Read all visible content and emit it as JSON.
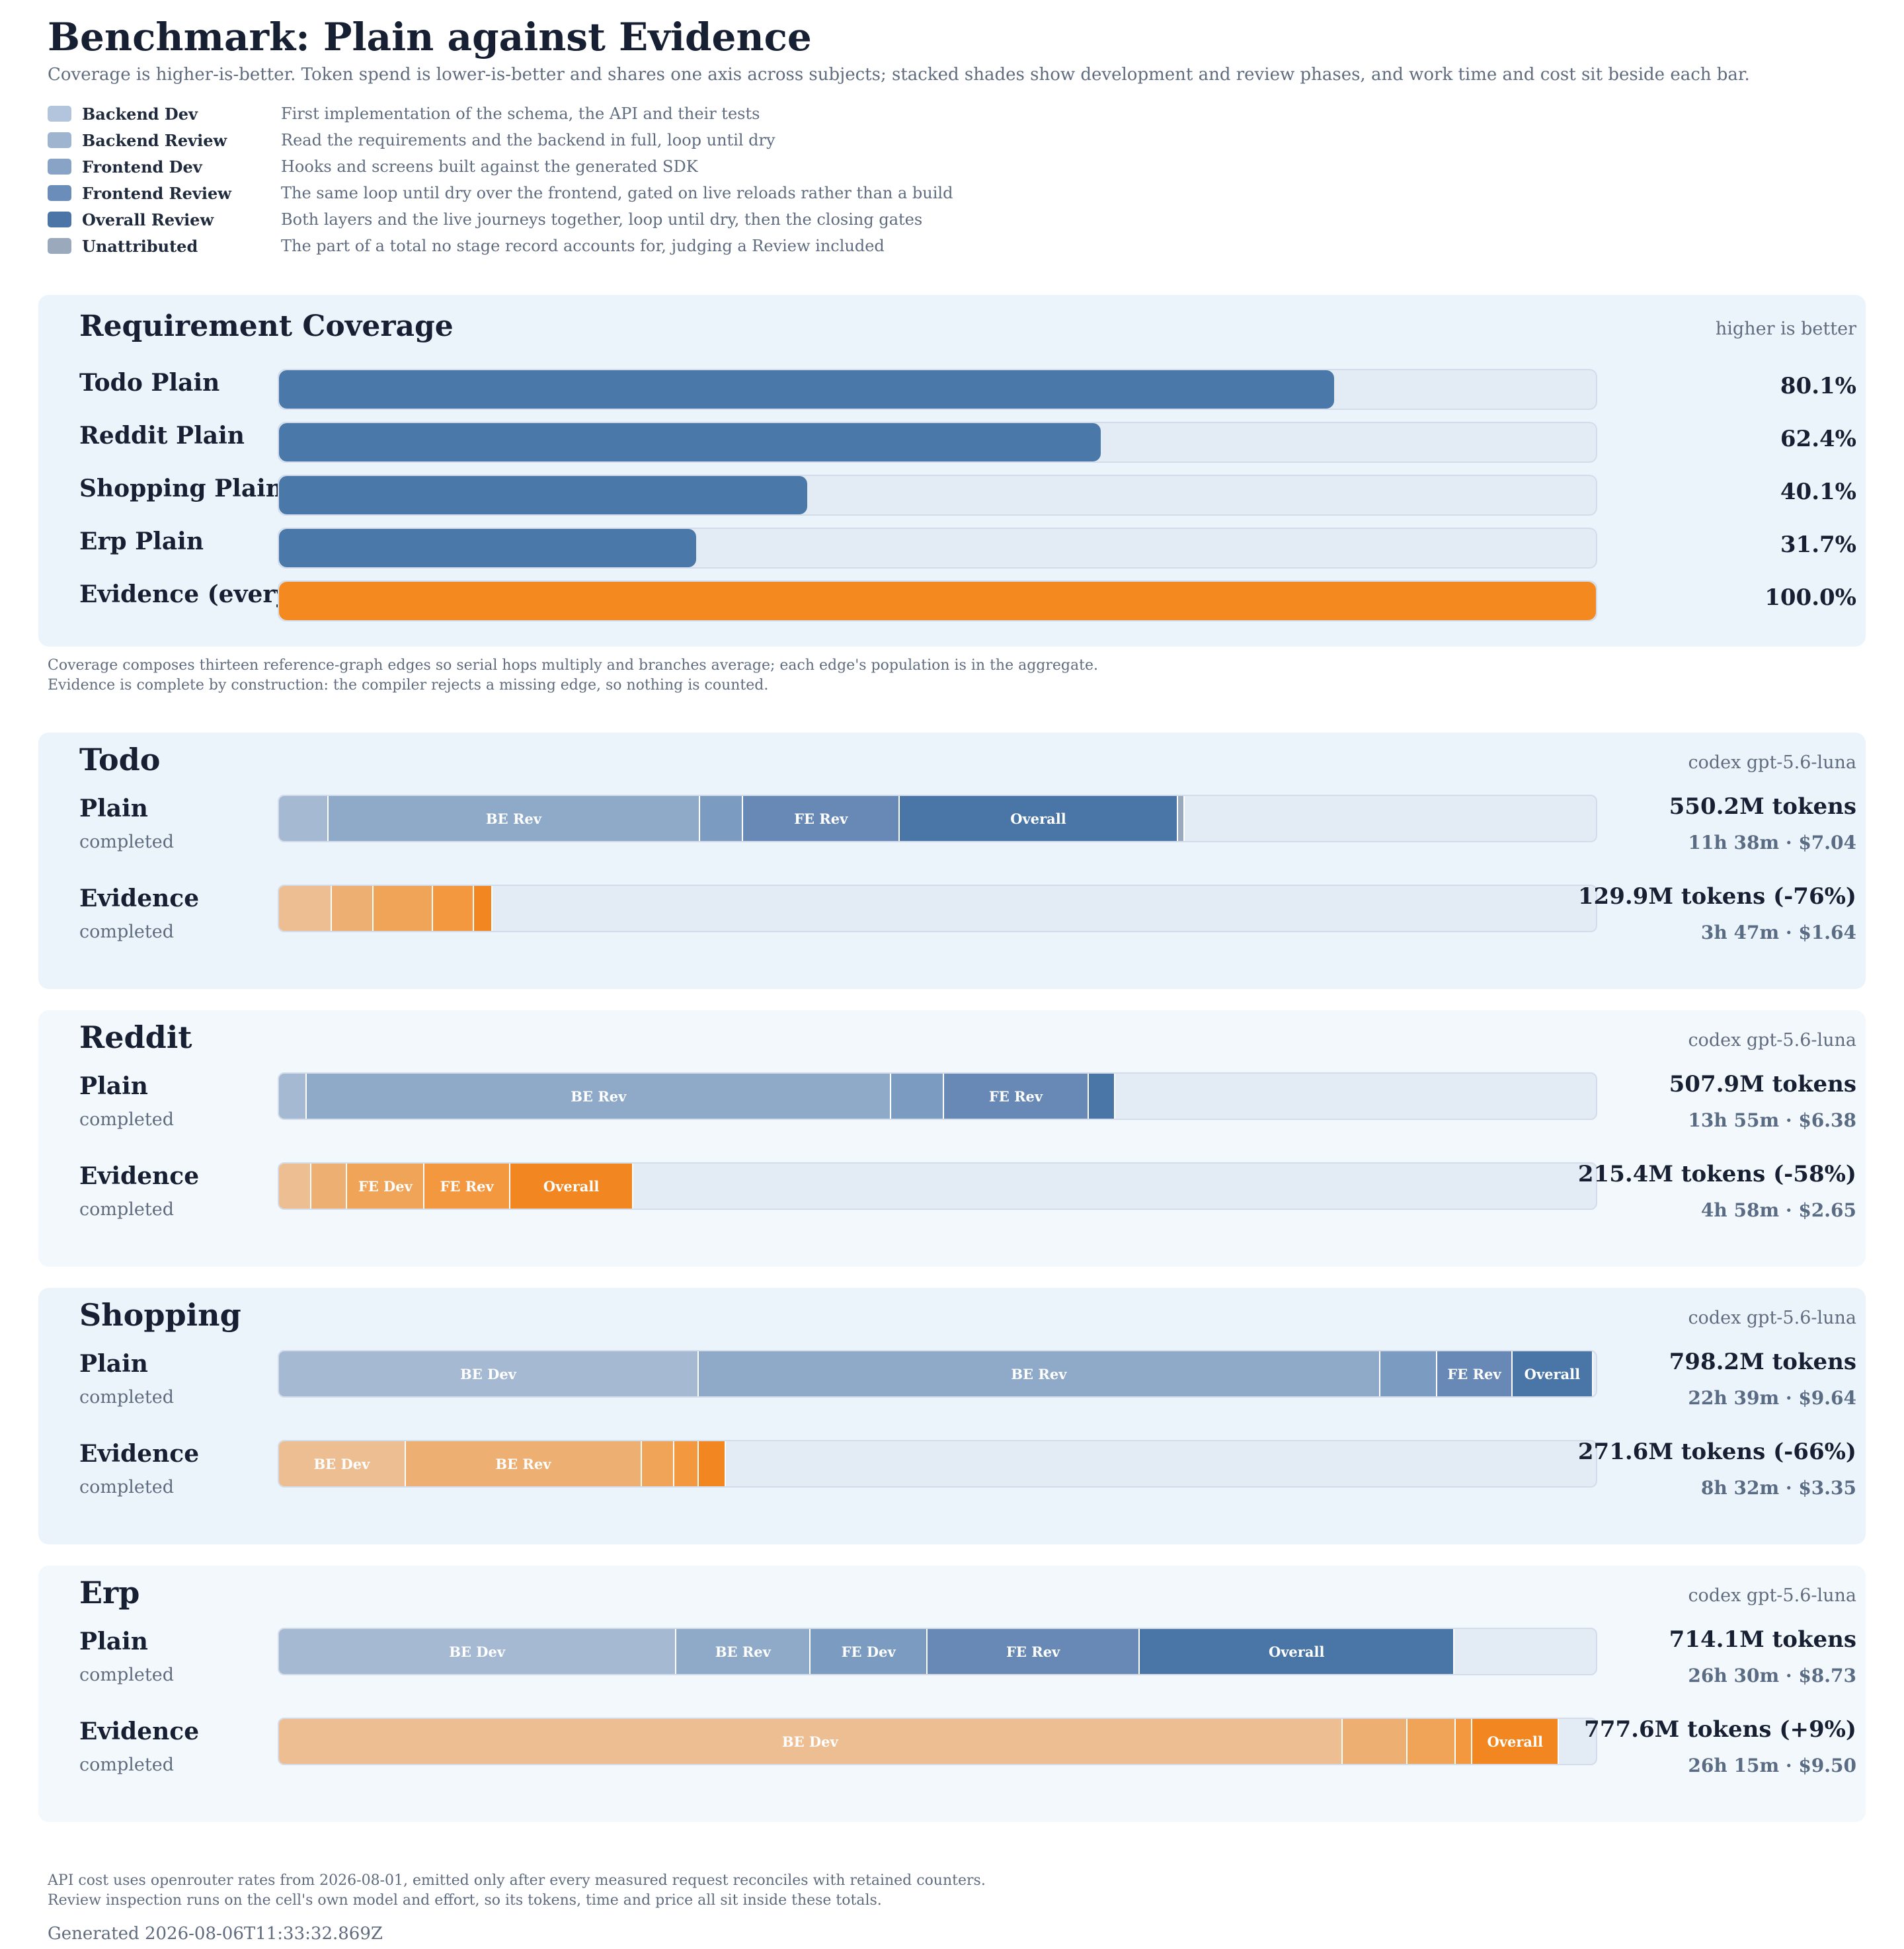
{
  "header": {
    "title": "Benchmark: Plain against Evidence",
    "subtitle": "Coverage is higher-is-better. Token spend is lower-is-better and shares one axis across subjects; stacked shades show development and review phases, and work time and cost sit beside each bar."
  },
  "legend": [
    {
      "name": "Backend Dev",
      "description": "First implementation of the schema, the API and their tests",
      "color": "#b3c5dc"
    },
    {
      "name": "Backend Review",
      "description": "Read the requirements and the backend in full, loop until dry",
      "color": "#9fb4cf"
    },
    {
      "name": "Frontend Dev",
      "description": "Hooks and screens built against the generated SDK",
      "color": "#88a3c6"
    },
    {
      "name": "Frontend Review",
      "description": "The same loop until dry over the frontend, gated on live reloads rather than a build",
      "color": "#6a8db9"
    },
    {
      "name": "Overall Review",
      "description": "Both layers and the live journeys together, loop until dry, then the closing gates",
      "color": "#4a75a6"
    },
    {
      "name": "Unattributed",
      "description": "The part of a total no stage record accounts for, judging a Review included",
      "color": "#9aa9bc"
    }
  ],
  "coverage": {
    "title": "Requirement Coverage",
    "note": "higher is better",
    "footnotes": [
      "Coverage composes thirteen reference-graph edges so serial hops multiply and branches average; each edge's population is in the aggregate.",
      "Evidence is complete by construction: the compiler rejects a missing edge, so nothing is counted."
    ]
  },
  "palette": {
    "plain": [
      "#a5b9d2",
      "#8eaac8",
      "#7b9bc1",
      "#6889b5",
      "#4a76a7",
      "#9aa9bc"
    ],
    "evidence": [
      "#eebe93",
      "#edaf72",
      "#f0a457",
      "#f3983f",
      "#f28620",
      "#f0a96b"
    ],
    "coverage_plain": "#4a78a8",
    "coverage_evidence": "#f4891f"
  },
  "footer": {
    "notes": [
      "API cost uses openrouter rates from 2026-08-01, emitted only after every measured request reconciles with retained counters.",
      "Review inspection runs on the cell's own model and effort, so its tokens, time and price all sit inside these totals."
    ],
    "generated": "Generated 2026-08-06T11:33:32.869Z"
  },
  "chart_data": [
    {
      "type": "bar",
      "title": "Requirement Coverage",
      "unit": "%",
      "xlim": [
        0,
        100
      ],
      "categories": [
        "Todo Plain",
        "Reddit Plain",
        "Shopping Plain",
        "Erp Plain",
        "Evidence (every subject)"
      ],
      "values": [
        80.1,
        62.4,
        40.1,
        31.7,
        100.0
      ],
      "value_labels": [
        "80.1%",
        "62.4%",
        "40.1%",
        "31.7%",
        "100.0%"
      ]
    },
    {
      "type": "bar",
      "stacked": true,
      "xlim": [
        0,
        800
      ],
      "unit": "M tokens",
      "stages": [
        "Backend Dev",
        "Backend Review",
        "Frontend Dev",
        "Frontend Review",
        "Overall Review",
        "Unattributed"
      ],
      "segment_labels": [
        "BE Dev",
        "BE Rev",
        "FE Dev",
        "FE Rev",
        "Overall",
        ""
      ],
      "subjects": [
        {
          "name": "Todo",
          "model": "codex gpt-5.6-luna",
          "runs": [
            {
              "name": "Plain",
              "status": "completed",
              "tokens_label": "550.2M tokens",
              "meta": "11h 38m · $7.04",
              "total": 550.2,
              "segments": [
                {
                  "stage": "Backend Dev",
                  "value": 30.0,
                  "label": ""
                },
                {
                  "stage": "Backend Review",
                  "value": 225.9,
                  "label": "BE Rev"
                },
                {
                  "stage": "Frontend Dev",
                  "value": 26.0,
                  "label": ""
                },
                {
                  "stage": "Frontend Review",
                  "value": 95.4,
                  "label": "FE Rev"
                },
                {
                  "stage": "Overall Review",
                  "value": 168.7,
                  "label": "Overall"
                },
                {
                  "stage": "Unattributed",
                  "value": 4.2,
                  "label": ""
                }
              ]
            },
            {
              "name": "Evidence",
              "status": "completed",
              "tokens_label": "129.9M tokens (-76%)",
              "meta": "3h 47m · $1.64",
              "total": 129.9,
              "segments": [
                {
                  "stage": "Backend Dev",
                  "value": 32.2,
                  "label": ""
                },
                {
                  "stage": "Backend Review",
                  "value": 25.4,
                  "label": ""
                },
                {
                  "stage": "Frontend Dev",
                  "value": 36.0,
                  "label": ""
                },
                {
                  "stage": "Frontend Review",
                  "value": 25.0,
                  "label": ""
                },
                {
                  "stage": "Overall Review",
                  "value": 11.3,
                  "label": ""
                }
              ]
            }
          ]
        },
        {
          "name": "Reddit",
          "model": "codex gpt-5.6-luna",
          "runs": [
            {
              "name": "Plain",
              "status": "completed",
              "tokens_label": "507.9M tokens",
              "meta": "13h 55m · $6.38",
              "total": 507.9,
              "segments": [
                {
                  "stage": "Backend Dev",
                  "value": 17.0,
                  "label": ""
                },
                {
                  "stage": "Backend Review",
                  "value": 355.0,
                  "label": "BE Rev"
                },
                {
                  "stage": "Frontend Dev",
                  "value": 32.0,
                  "label": ""
                },
                {
                  "stage": "Frontend Review",
                  "value": 88.0,
                  "label": "FE Rev"
                },
                {
                  "stage": "Overall Review",
                  "value": 15.9,
                  "label": ""
                }
              ]
            },
            {
              "name": "Evidence",
              "status": "completed",
              "tokens_label": "215.4M tokens (-58%)",
              "meta": "4h 58m · $2.65",
              "total": 215.4,
              "segments": [
                {
                  "stage": "Backend Dev",
                  "value": 19.5,
                  "label": ""
                },
                {
                  "stage": "Backend Review",
                  "value": 22.0,
                  "label": ""
                },
                {
                  "stage": "Frontend Dev",
                  "value": 47.0,
                  "label": "FE Dev"
                },
                {
                  "stage": "Frontend Review",
                  "value": 52.0,
                  "label": "FE Rev"
                },
                {
                  "stage": "Overall Review",
                  "value": 74.9,
                  "label": "Overall"
                }
              ]
            }
          ]
        },
        {
          "name": "Shopping",
          "model": "codex gpt-5.6-luna",
          "runs": [
            {
              "name": "Plain",
              "status": "completed",
              "tokens_label": "798.2M tokens",
              "meta": "22h 39m · $9.64",
              "total": 798.2,
              "segments": [
                {
                  "stage": "Backend Dev",
                  "value": 255.0,
                  "label": "BE Dev"
                },
                {
                  "stage": "Backend Review",
                  "value": 414.0,
                  "label": "BE Rev"
                },
                {
                  "stage": "Frontend Dev",
                  "value": 34.5,
                  "label": ""
                },
                {
                  "stage": "Frontend Review",
                  "value": 46.0,
                  "label": "FE Rev"
                },
                {
                  "stage": "Overall Review",
                  "value": 48.7,
                  "label": "Overall"
                }
              ]
            },
            {
              "name": "Evidence",
              "status": "completed",
              "tokens_label": "271.6M tokens (-66%)",
              "meta": "8h 32m · $3.35",
              "total": 271.6,
              "segments": [
                {
                  "stage": "Backend Dev",
                  "value": 77.0,
                  "label": "BE Dev"
                },
                {
                  "stage": "Backend Review",
                  "value": 143.5,
                  "label": "BE Rev"
                },
                {
                  "stage": "Frontend Dev",
                  "value": 19.5,
                  "label": ""
                },
                {
                  "stage": "Frontend Review",
                  "value": 15.0,
                  "label": ""
                },
                {
                  "stage": "Overall Review",
                  "value": 16.6,
                  "label": ""
                }
              ]
            }
          ]
        },
        {
          "name": "Erp",
          "model": "codex gpt-5.6-luna",
          "runs": [
            {
              "name": "Plain",
              "status": "completed",
              "tokens_label": "714.1M tokens",
              "meta": "26h 30m · $8.73",
              "total": 714.1,
              "segments": [
                {
                  "stage": "Backend Dev",
                  "value": 241.5,
                  "label": "BE Dev"
                },
                {
                  "stage": "Backend Review",
                  "value": 81.5,
                  "label": "BE Rev"
                },
                {
                  "stage": "Frontend Dev",
                  "value": 71.0,
                  "label": "FE Dev"
                },
                {
                  "stage": "Frontend Review",
                  "value": 129.0,
                  "label": "FE Rev"
                },
                {
                  "stage": "Overall Review",
                  "value": 191.1,
                  "label": "Overall"
                }
              ]
            },
            {
              "name": "Evidence",
              "status": "completed",
              "tokens_label": "777.6M tokens (+9%)",
              "meta": "26h 15m · $9.50",
              "total": 777.6,
              "segments": [
                {
                  "stage": "Backend Dev",
                  "value": 646.0,
                  "label": "BE Dev"
                },
                {
                  "stage": "Backend Review",
                  "value": 39.5,
                  "label": ""
                },
                {
                  "stage": "Frontend Dev",
                  "value": 29.5,
                  "label": ""
                },
                {
                  "stage": "Frontend Review",
                  "value": 10.0,
                  "label": ""
                },
                {
                  "stage": "Overall Review",
                  "value": 52.6,
                  "label": "Overall"
                }
              ]
            }
          ]
        }
      ]
    }
  ]
}
